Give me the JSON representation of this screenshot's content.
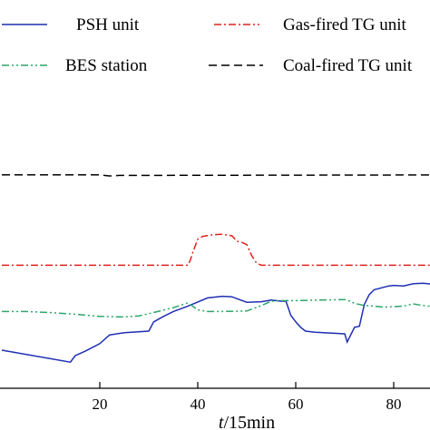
{
  "chart_data": {
    "type": "line",
    "xlabel_italic": "t",
    "xlabel_rest": "/15min",
    "xlim": [
      0,
      96
    ],
    "x_ticks": [
      "20",
      "40",
      "60",
      "80"
    ],
    "y_ticks": [],
    "grid": false,
    "legend_position": "top",
    "series": [
      {
        "name": "PSH unit",
        "color": "#1f2fb4",
        "dash": "solid",
        "x": [
          0,
          14,
          15,
          17,
          20,
          22,
          25,
          30,
          31,
          33,
          35,
          38,
          42,
          45,
          47,
          50,
          53,
          55,
          57,
          58,
          59,
          60,
          61,
          62,
          64,
          70,
          70.5,
          71,
          72,
          73,
          74,
          75,
          76,
          79,
          80,
          82,
          84,
          86,
          88,
          90,
          92,
          96
        ],
        "y": [
          2,
          0.9,
          1.5,
          1.9,
          2.6,
          3.4,
          3.6,
          3.75,
          4.6,
          5.1,
          5.55,
          6.05,
          6.8,
          6.95,
          6.9,
          6.4,
          6.45,
          6.6,
          6.5,
          6.5,
          5.2,
          4.6,
          4.1,
          3.75,
          3.65,
          3.5,
          2.75,
          3.2,
          4.1,
          4.2,
          6.2,
          7.1,
          7.55,
          7.9,
          7.95,
          7.9,
          8.1,
          8.15,
          8.05,
          7.8,
          7.5,
          7.3
        ]
      },
      {
        "name": "Gas-fired TG unit",
        "color": "#e0201b",
        "dash": "dashdot",
        "x": [
          0,
          38,
          38.5,
          39,
          40,
          41,
          43,
          45,
          47,
          48,
          49,
          50,
          51,
          52,
          53,
          96
        ],
        "y": [
          9.8,
          9.8,
          10.3,
          11.0,
          12.2,
          12.45,
          12.6,
          12.65,
          12.5,
          12.0,
          11.9,
          11.7,
          10.7,
          10.0,
          9.8,
          9.8
        ]
      },
      {
        "name": "BES station",
        "color": "#2ca66a",
        "dash": "dashdotdot",
        "x": [
          0,
          5,
          10,
          15,
          20,
          25,
          28,
          30,
          35,
          38,
          40,
          42,
          45,
          50,
          53,
          55,
          57,
          60,
          65,
          70,
          71,
          72,
          74,
          76,
          78,
          80,
          82,
          84,
          86,
          88,
          96
        ],
        "y": [
          5.55,
          5.55,
          5.45,
          5.3,
          5.1,
          5.05,
          5.15,
          5.35,
          5.9,
          6.35,
          5.7,
          5.55,
          5.55,
          5.6,
          6.1,
          6.5,
          6.55,
          6.55,
          6.6,
          6.65,
          6.5,
          6.3,
          6.1,
          6.05,
          5.95,
          6.0,
          6.05,
          6.25,
          6.1,
          6.0,
          5.8
        ]
      },
      {
        "name": "Coal-fired TG unit",
        "color": "#000000",
        "dash": "dashed",
        "x": [
          0,
          20,
          22,
          24,
          96
        ],
        "y": [
          18.1,
          18.1,
          18.0,
          18.05,
          18.1
        ]
      }
    ]
  }
}
